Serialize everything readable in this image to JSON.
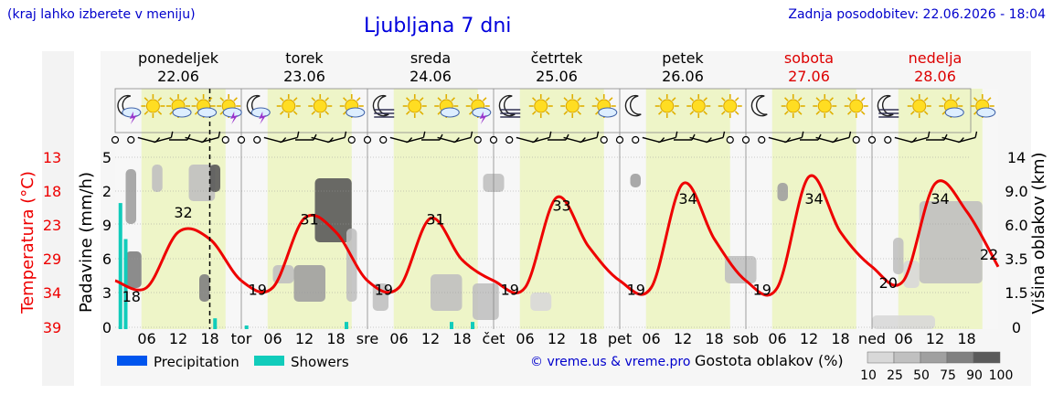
{
  "header": {
    "note": "(kraj lahko izberete v meniju)",
    "title": "Ljubljana 7 dni",
    "updated": "Zadnja posodobitev: 22.06.2026 - 18:04"
  },
  "colors": {
    "day_band": "#eef5c8",
    "night_band": "#f7f7f7",
    "temperature": "#ee0000",
    "precipitation": "#0055ee",
    "showers": "#11ccbb",
    "weekend": "#dd0000",
    "weekday": "#000000",
    "link": "#0000cc"
  },
  "days": [
    {
      "name": "ponedeljek",
      "date": "22.06",
      "weekend": false,
      "abbr": ""
    },
    {
      "name": "torek",
      "date": "23.06",
      "weekend": false,
      "abbr": "tor"
    },
    {
      "name": "sreda",
      "date": "24.06",
      "weekend": false,
      "abbr": "sre"
    },
    {
      "name": "četrtek",
      "date": "25.06",
      "weekend": false,
      "abbr": "čet"
    },
    {
      "name": "petek",
      "date": "26.06",
      "weekend": false,
      "abbr": "pet"
    },
    {
      "name": "sobota",
      "date": "27.06",
      "weekend": true,
      "abbr": "sob"
    },
    {
      "name": "nedelja",
      "date": "28.06",
      "weekend": true,
      "abbr": "ned"
    }
  ],
  "icons": [
    [
      "moon-cloud-thunder-icon",
      "sun-icon",
      "cloud-sun-icon",
      "sun-cloud-icon",
      "cloud-sun-thunder-icon"
    ],
    [
      "moon-cloud-thunder-icon",
      "sun-icon",
      "sun-icon",
      "cloud-sun-icon"
    ],
    [
      "moon-fog-icon",
      "sun-icon",
      "cloud-sun-icon",
      "cloud-sun-thunder-icon"
    ],
    [
      "moon-fog-icon",
      "sun-icon",
      "sun-icon",
      "cloud-sun-icon"
    ],
    [
      "moon-icon",
      "sun-icon",
      "sun-icon",
      "sun-icon"
    ],
    [
      "moon-icon",
      "sun-icon",
      "sun-icon",
      "sun-icon"
    ],
    [
      "moon-fog-icon",
      "sun-icon",
      "cloud-sun-icon",
      "cloud-sun-icon"
    ]
  ],
  "axes": {
    "temperature": {
      "label": "Temperatura (°C)",
      "ticks": [
        "13",
        "18",
        "23",
        "29",
        "34",
        "39"
      ]
    },
    "precipitation": {
      "label": "Padavine (mm/h)",
      "ticks": [
        "0",
        "3",
        "6",
        "9",
        "2",
        "5"
      ]
    },
    "cloud_height": {
      "label": "Višina oblakov (km)",
      "ticks": [
        "0",
        "1.5",
        "3.5",
        "6.0",
        "9.0",
        "14"
      ]
    },
    "hour_ticks": [
      "06",
      "12",
      "18"
    ]
  },
  "chart_data": {
    "type": "line",
    "x": [
      "22.06 00",
      "22.06 06",
      "22.06 12",
      "22.06 18",
      "23.06 00",
      "23.06 06",
      "23.06 12",
      "23.06 18",
      "24.06 00",
      "24.06 06",
      "24.06 12",
      "24.06 18",
      "25.06 00",
      "25.06 06",
      "25.06 12",
      "25.06 18",
      "26.06 00",
      "26.06 06",
      "26.06 12",
      "26.06 18",
      "27.06 00",
      "27.06 06",
      "27.06 12",
      "27.06 18",
      "28.06 00",
      "28.06 06",
      "28.06 12",
      "28.06 18",
      "28.06 24"
    ],
    "series": [
      {
        "values": [
          20,
          19,
          27,
          26,
          20,
          19,
          29,
          27,
          20,
          19,
          29,
          23,
          20,
          19,
          32,
          25,
          20,
          19,
          34,
          26,
          20,
          19,
          35,
          27,
          22,
          20,
          34,
          30,
          22
        ]
      }
    ],
    "annotations": [
      {
        "day": 0,
        "label": "18",
        "kind": "min"
      },
      {
        "day": 0,
        "label": "32",
        "kind": "max"
      },
      {
        "day": 1,
        "label": "19",
        "kind": "min"
      },
      {
        "day": 1,
        "label": "31",
        "kind": "max"
      },
      {
        "day": 2,
        "label": "19",
        "kind": "min"
      },
      {
        "day": 2,
        "label": "31",
        "kind": "max"
      },
      {
        "day": 3,
        "label": "19",
        "kind": "min"
      },
      {
        "day": 3,
        "label": "33",
        "kind": "max"
      },
      {
        "day": 4,
        "label": "19",
        "kind": "min"
      },
      {
        "day": 4,
        "label": "34",
        "kind": "max"
      },
      {
        "day": 5,
        "label": "19",
        "kind": "min"
      },
      {
        "day": 5,
        "label": "34",
        "kind": "max"
      },
      {
        "day": 6,
        "label": "20",
        "kind": "min"
      },
      {
        "day": 6,
        "label": "34",
        "kind": "max"
      },
      {
        "day": 6,
        "label": "22",
        "kind": "end"
      }
    ],
    "precipitation": {
      "x": [
        "22.06 01",
        "22.06 02",
        "22.06 19",
        "23.06 01",
        "23.06 20",
        "24.06 16",
        "24.06 20"
      ],
      "showers_mm": [
        3.5,
        2.5,
        0.3,
        0.1,
        0.2,
        0.2,
        0.2
      ],
      "precipitation_mm": [
        0,
        0,
        0,
        0,
        0,
        0,
        0
      ]
    },
    "current_time": "22.06 18"
  },
  "legend": {
    "items": [
      {
        "label": "Precipitation",
        "color": "#0055ee"
      },
      {
        "label": "Showers",
        "color": "#11ccbb"
      }
    ],
    "credit": "© vreme.us & vreme.pro",
    "cloud_density_title": "Gostota oblakov (%)",
    "cloud_density_ticks": [
      "10",
      "25",
      "50",
      "75",
      "90",
      "100"
    ],
    "cloud_density_colors": [
      "#d8d8d8",
      "#c0c0c0",
      "#a0a0a0",
      "#808080",
      "#5a5a5a"
    ]
  }
}
